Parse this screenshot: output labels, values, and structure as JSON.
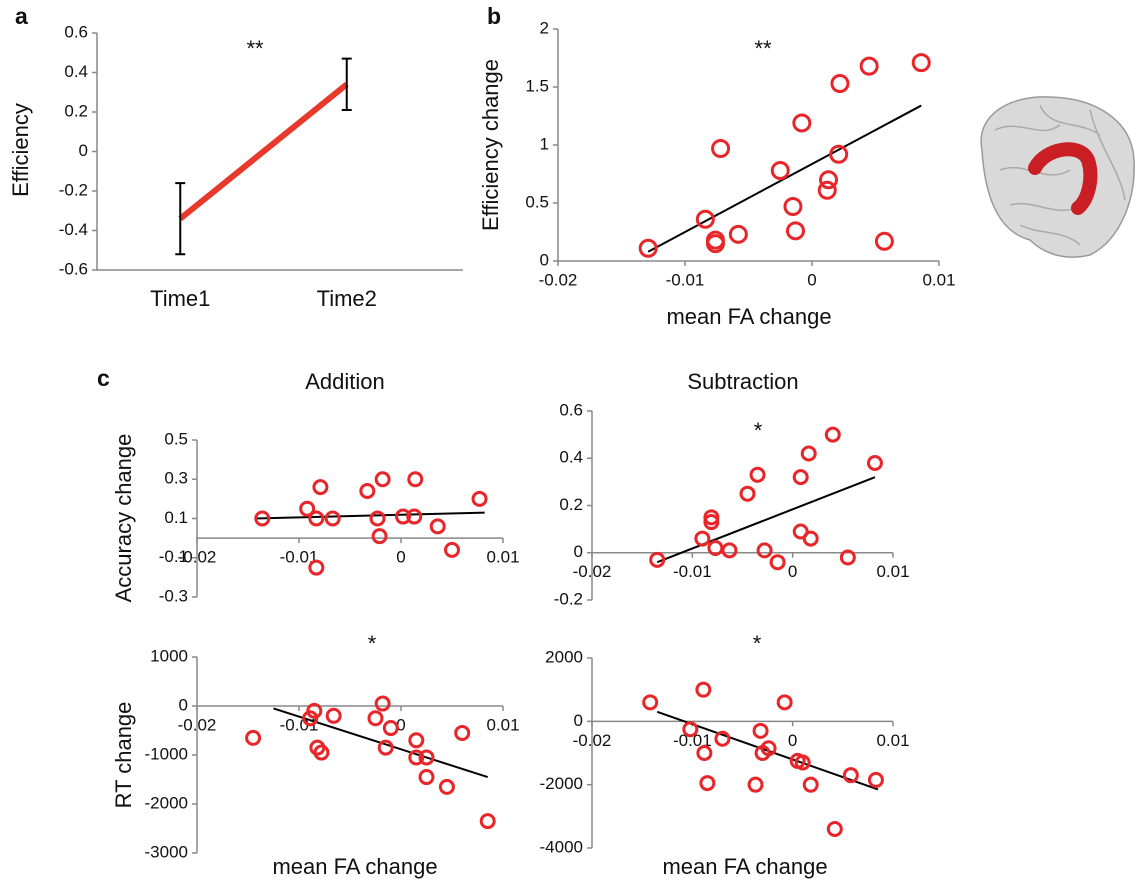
{
  "chart_data": [
    {
      "type": "line",
      "panel_label": "a",
      "ylabel": "Efficiency",
      "annotation": "**",
      "categories": [
        "Time1",
        "Time2"
      ],
      "values": [
        -0.34,
        0.34
      ],
      "errors": [
        0.18,
        0.13
      ],
      "color": "#e8392b",
      "error_color": "#000000",
      "ylim": [
        -0.6,
        0.6
      ],
      "yticks": [
        -0.6,
        -0.4,
        -0.2,
        0,
        0.2,
        0.4,
        0.6
      ]
    },
    {
      "type": "scatter",
      "panel_label": "b",
      "xlabel": "mean FA change",
      "ylabel": "Efficiency change",
      "annotation": "**",
      "x": [
        -0.0129,
        -0.0084,
        -0.0076,
        -0.0076,
        -0.0072,
        -0.0058,
        -0.0025,
        -0.0015,
        -0.0013,
        -0.0008,
        0.0013,
        0.0012,
        0.0021,
        0.0022,
        0.0045,
        0.0057,
        0.0086
      ],
      "values": [
        0.11,
        0.36,
        0.18,
        0.15,
        0.97,
        0.23,
        0.78,
        0.47,
        0.26,
        1.19,
        0.7,
        0.61,
        0.92,
        1.53,
        1.68,
        0.17,
        1.71
      ],
      "color": "#e8262a",
      "trendline": {
        "x": [
          -0.0129,
          0.0086
        ],
        "y": [
          0.08,
          1.34
        ],
        "color": "#000000"
      },
      "xlim": [
        -0.02,
        0.01
      ],
      "xticks": [
        -0.02,
        -0.01,
        0,
        0.01
      ],
      "ylim": [
        0,
        2
      ],
      "yticks": [
        0,
        0.5,
        1,
        1.5,
        2
      ]
    },
    {
      "type": "scatter",
      "panel_label": "c",
      "title": "Addition",
      "ylabel": "Accuracy change",
      "x": [
        -0.0136,
        -0.0092,
        -0.0079,
        -0.0083,
        -0.0067,
        -0.0083,
        -0.0033,
        -0.0018,
        -0.0023,
        -0.0021,
        0.0002,
        0.0013,
        0.0014,
        0.0036,
        0.005,
        0.0077
      ],
      "values": [
        0.1,
        0.15,
        0.26,
        0.1,
        0.1,
        -0.15,
        0.24,
        0.3,
        0.1,
        0.01,
        0.11,
        0.11,
        0.3,
        0.06,
        -0.06,
        0.2
      ],
      "color": "#e8262a",
      "trendline": {
        "x": [
          -0.0143,
          0.0082
        ],
        "y": [
          0.1,
          0.13
        ],
        "color": "#000000"
      },
      "xlim": [
        -0.02,
        0.01
      ],
      "xticks": [
        -0.02,
        -0.01,
        0,
        0.01
      ],
      "ylim": [
        -0.3,
        0.5
      ],
      "yticks": [
        -0.3,
        -0.1,
        0.1,
        0.3,
        0.5
      ]
    },
    {
      "type": "scatter",
      "title": "Subtraction",
      "annotation": "*",
      "x": [
        -0.0135,
        -0.009,
        -0.0081,
        -0.0081,
        -0.0077,
        -0.0063,
        -0.0045,
        -0.0035,
        -0.0028,
        -0.0015,
        0.0008,
        0.0008,
        0.0016,
        0.0018,
        0.004,
        0.0055,
        0.0082
      ],
      "values": [
        -0.03,
        0.06,
        0.15,
        0.13,
        0.02,
        0.01,
        0.25,
        0.33,
        0.01,
        -0.04,
        0.32,
        0.09,
        0.42,
        0.06,
        0.5,
        -0.02,
        0.38
      ],
      "color": "#e8262a",
      "trendline": {
        "x": [
          -0.0135,
          0.0082
        ],
        "y": [
          -0.04,
          0.32
        ],
        "color": "#000000"
      },
      "xlim": [
        -0.02,
        0.01
      ],
      "xticks": [
        -0.02,
        -0.01,
        0,
        0.01
      ],
      "ylim": [
        -0.2,
        0.6
      ],
      "yticks": [
        -0.2,
        0,
        0.2,
        0.4,
        0.6
      ]
    },
    {
      "type": "scatter",
      "xlabel": "mean FA change",
      "ylabel": "RT change",
      "annotation": "*",
      "x": [
        -0.0145,
        -0.0089,
        -0.0085,
        -0.0082,
        -0.0078,
        -0.0066,
        -0.0025,
        -0.0018,
        -0.0015,
        -0.001,
        0.0015,
        0.0015,
        0.0025,
        0.0025,
        0.0045,
        0.006,
        0.0085
      ],
      "values": [
        -650,
        -250,
        -100,
        -850,
        -950,
        -200,
        -250,
        50,
        -850,
        -450,
        -700,
        -1050,
        -1050,
        -1450,
        -1650,
        -550,
        -2350
      ],
      "color": "#e8262a",
      "trendline": {
        "x": [
          -0.0125,
          0.0085
        ],
        "y": [
          -50,
          -1450
        ],
        "color": "#000000"
      },
      "xlim": [
        -0.02,
        0.01
      ],
      "xticks": [
        -0.02,
        -0.01,
        0,
        0.01
      ],
      "ylim": [
        -3000,
        1000
      ],
      "yticks": [
        -3000,
        -2000,
        -1000,
        0,
        1000
      ]
    },
    {
      "type": "scatter",
      "xlabel": "mean FA change",
      "annotation": "*",
      "x": [
        -0.0142,
        -0.0102,
        -0.0089,
        -0.0088,
        -0.0085,
        -0.007,
        -0.0037,
        -0.0032,
        -0.003,
        -0.0024,
        -0.0008,
        0.0005,
        0.001,
        0.0018,
        0.0042,
        0.0058,
        0.0083
      ],
      "values": [
        600,
        -250,
        1000,
        -1000,
        -1950,
        -550,
        -2000,
        -300,
        -1000,
        -850,
        600,
        -1250,
        -1300,
        -2000,
        -3400,
        -1700,
        -1850
      ],
      "color": "#e8262a",
      "trendline": {
        "x": [
          -0.0135,
          0.0085
        ],
        "y": [
          300,
          -2150
        ],
        "color": "#000000"
      },
      "xlim": [
        -0.02,
        0.01
      ],
      "xticks": [
        -0.02,
        -0.01,
        0,
        0.01
      ],
      "ylim": [
        -4000,
        2000
      ],
      "yticks": [
        -4000,
        -2000,
        0,
        2000
      ]
    }
  ]
}
